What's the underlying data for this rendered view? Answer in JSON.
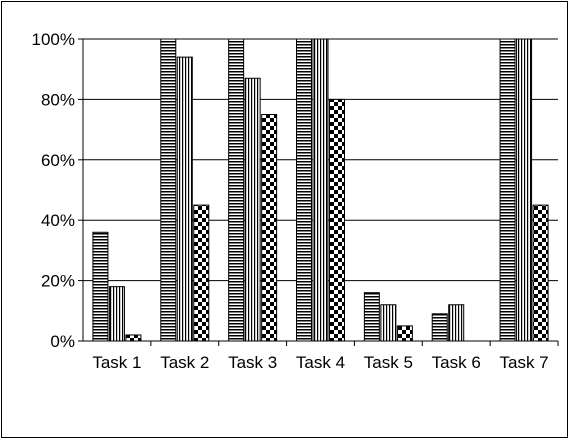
{
  "chart_data": {
    "type": "bar",
    "title": "",
    "xlabel": "",
    "ylabel": "",
    "ylim": [
      0,
      100
    ],
    "y_tick_values": [
      0,
      20,
      40,
      60,
      80,
      100
    ],
    "y_tick_labels": [
      "0%",
      "20%",
      "40%",
      "60%",
      "80%",
      "100%"
    ],
    "grid": "horizontal",
    "legend": "none",
    "categories": [
      "Task 1",
      "Task 2",
      "Task 3",
      "Task 4",
      "Task 5",
      "Task 6",
      "Task 7"
    ],
    "series": [
      {
        "pattern": "horizontal-stripes",
        "values": [
          36,
          100,
          100,
          100,
          16,
          9,
          100
        ]
      },
      {
        "pattern": "vertical-stripes",
        "values": [
          18,
          94,
          87,
          100,
          12,
          12,
          100
        ]
      },
      {
        "pattern": "checkerboard",
        "values": [
          2,
          45,
          75,
          80,
          5,
          0,
          45
        ]
      }
    ]
  }
}
